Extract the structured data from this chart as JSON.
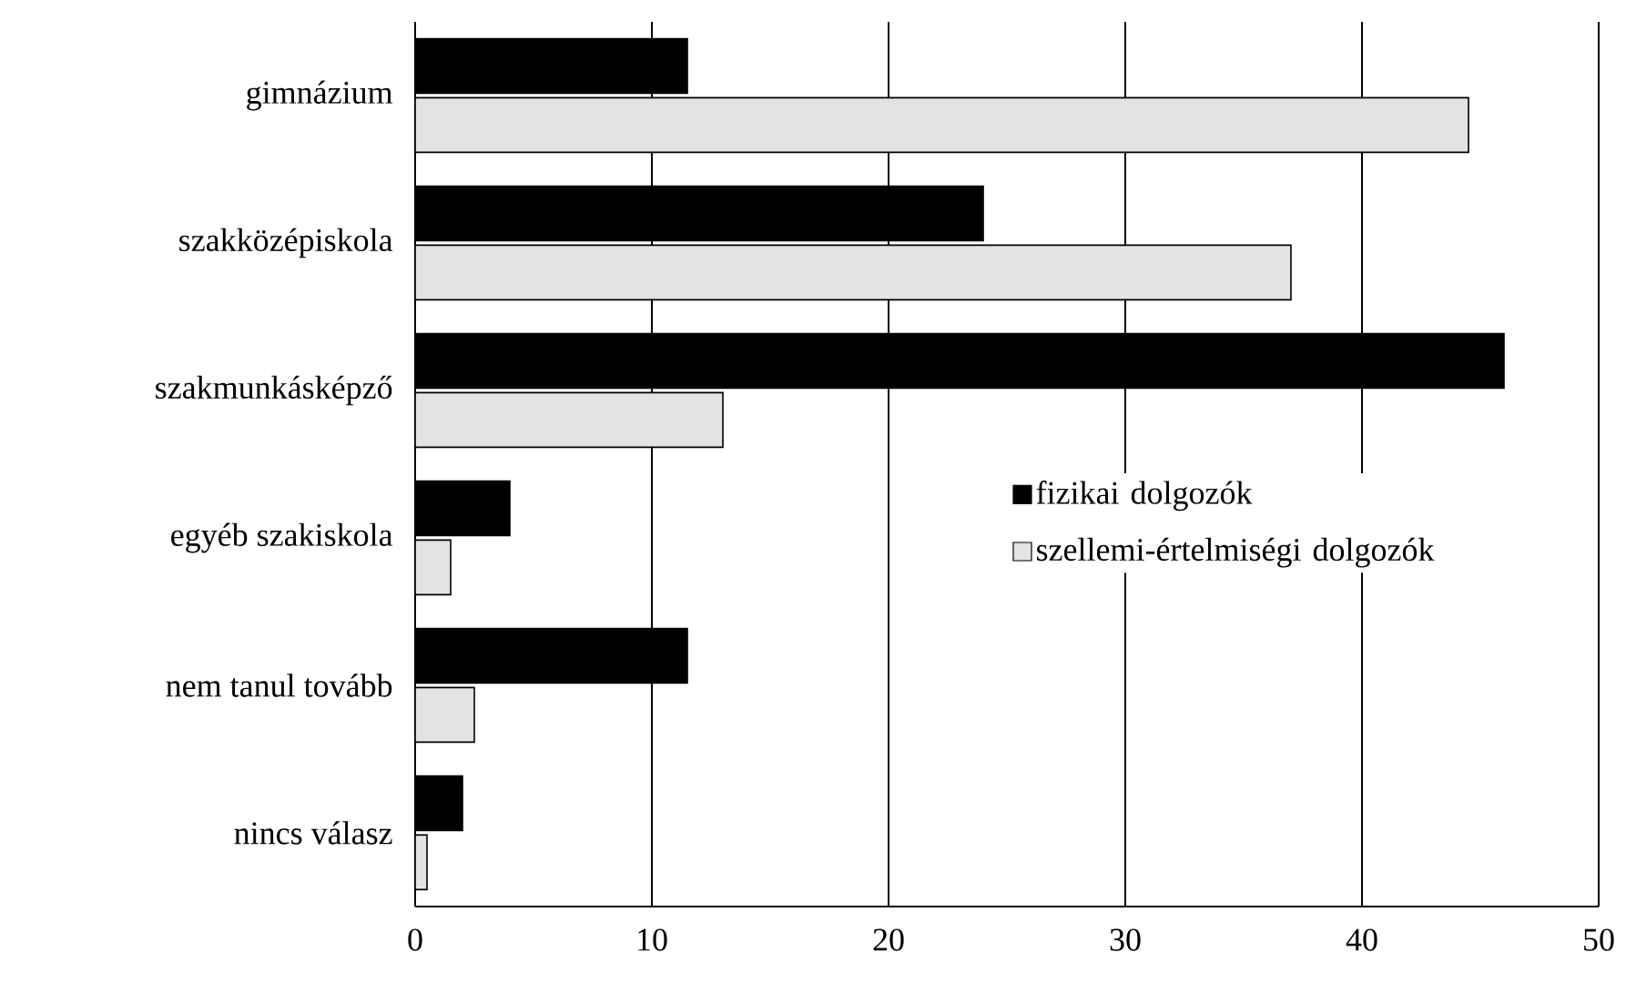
{
  "chart_data": {
    "type": "bar",
    "orientation": "horizontal",
    "categories": [
      "gimnázium",
      "szakközépiskola",
      "szakmunkásképző",
      "egyéb szakiskola",
      "nem tanul tovább",
      "nincs válasz"
    ],
    "series": [
      {
        "name": "fizikai dolgozók",
        "color": "#000000",
        "values": [
          11.5,
          24,
          46,
          4,
          11.5,
          2
        ]
      },
      {
        "name": "szellemi-értelmiségi dolgozók",
        "color": "#e3e3e3",
        "values": [
          44.5,
          37,
          13,
          1.5,
          2.5,
          0.5
        ]
      }
    ],
    "xlim": [
      0,
      50
    ],
    "xticks": [
      0,
      10,
      20,
      30,
      40,
      50
    ],
    "grid": "x",
    "legend": "right"
  }
}
